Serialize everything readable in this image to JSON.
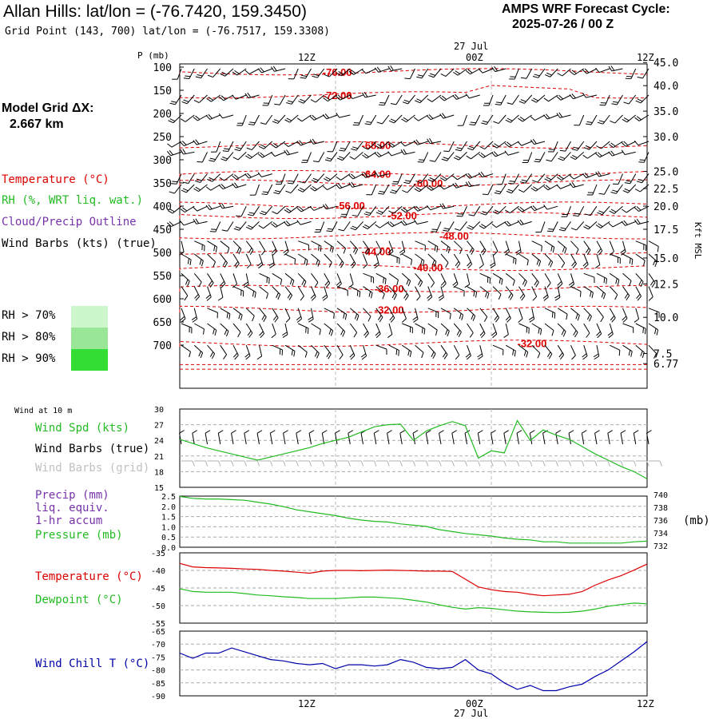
{
  "header": {
    "title": "Allan Hills:  lat/lon = (-76.7420, 159.3450)",
    "subtitle": "Grid Point (143, 700) lat/lon = (-76.7517, 159.3308)",
    "cycle_line1": "AMPS WRF Forecast Cycle:",
    "cycle_line2": "2025-07-26 / 00  Z"
  },
  "model_grid": {
    "line1": "Model Grid ΔX:",
    "line2": "2.667 km"
  },
  "legend": {
    "temperature": "Temperature (°C)",
    "rh": "RH (%, WRT liq. wat.)",
    "cloud": "Cloud/Precip Outline",
    "wind": "Wind Barbs (kts) (true)",
    "rh70": "RH > 70%",
    "rh80": "RH > 80%",
    "rh90": "RH > 90%"
  },
  "colors": {
    "temperature": "#dd0000",
    "rh": "#22bb22",
    "cloud": "#7733aa",
    "rh70": "#ccf7cc",
    "rh80": "#99e699",
    "rh90": "#33dd33",
    "wind_chill": "#0000aa",
    "grid_barbs": "#b0b0b0"
  },
  "time_axis": {
    "date": "27 Jul",
    "top_labels": [
      "12Z",
      "00Z",
      "12Z"
    ],
    "bottom_labels": [
      "12Z",
      "00Z",
      "12Z"
    ]
  },
  "panel_labels": {
    "pressure_axis": "P (mb)",
    "kft_axis": "Kft MSL",
    "wind10": "Wind at 10 m",
    "wind_spd": "Wind Spd (kts)",
    "wind_barbs_true": "Wind Barbs (true)",
    "wind_barbs_grid": "Wind Barbs (grid)",
    "precip1": "Precip (mm)",
    "precip2": "liq. equiv.",
    "precip3": "1-hr accum",
    "pressure": "Pressure (mb)",
    "mb": "(mb)",
    "temperature": "Temperature (°C)",
    "dewpoint": "Dewpoint (°C)",
    "windchill": "Wind Chill T (°C)"
  },
  "chart_data": [
    {
      "type": "line",
      "panel": "cross-section",
      "pressure_levels": [
        "100",
        "150",
        "200",
        "250",
        "300",
        "350",
        "400",
        "450",
        "500",
        "550",
        "600",
        "650",
        "700"
      ],
      "height_labels_kft": [
        "45.0",
        "40.0",
        "35.0",
        "30.0",
        "25.0",
        "22.5",
        "20.0",
        "17.5",
        "15.0",
        "12.5",
        "10.0",
        "7.5",
        "6.77"
      ],
      "height_pressure": [
        90,
        140,
        195,
        250,
        325,
        362,
        400,
        450,
        512,
        568,
        640,
        718,
        740
      ],
      "xlim_hours": [
        0,
        36
      ],
      "temperature_contours": [
        {
          "label": "-76.00",
          "p": 110,
          "at_h": 11
        },
        {
          "label": "-72.00",
          "p": 160,
          "at_h": 11
        },
        {
          "label": "-68.00",
          "p": 268,
          "at_h": 14
        },
        {
          "label": "-64.00",
          "p": 330,
          "at_h": 14
        },
        {
          "label": "-60.00",
          "p": 350,
          "at_h": 18
        },
        {
          "label": "-56.00",
          "p": 398,
          "at_h": 12
        },
        {
          "label": "-52.00",
          "p": 420,
          "at_h": 16
        },
        {
          "label": "-48.00",
          "p": 464,
          "at_h": 20
        },
        {
          "label": "-44.00",
          "p": 497,
          "at_h": 14
        },
        {
          "label": "-40.00",
          "p": 532,
          "at_h": 18
        },
        {
          "label": "-36.00",
          "p": 578,
          "at_h": 15
        },
        {
          "label": "-32.00",
          "p": 623,
          "at_h": 15
        },
        {
          "label": "-32.00",
          "p": 696,
          "at_h": 26
        }
      ]
    },
    {
      "type": "line",
      "panel": "wind-10m",
      "ylim": [
        15,
        30
      ],
      "yticks": [
        "30",
        "27",
        "24",
        "21",
        "18",
        "15"
      ],
      "series": [
        {
          "values": [
            24.2,
            23.4,
            22.6,
            22.0,
            21.4,
            20.8,
            20.2,
            20.8,
            21.4,
            22.0,
            22.6,
            23.4,
            24.0,
            24.6,
            25.6,
            26.6,
            27.0,
            27.1,
            24.0,
            25.8,
            26.8,
            27.6,
            26.8,
            20.6,
            22.0,
            21.6,
            27.8,
            24.0,
            26.0,
            25.0,
            24.2,
            22.8,
            21.4,
            20.2,
            19.0,
            18.0,
            16.6
          ]
        }
      ]
    },
    {
      "type": "line",
      "panel": "precip-pressure",
      "ylim_left": [
        0,
        2.5
      ],
      "yticks_left": [
        "2.5",
        "2.0",
        "1.5",
        "1.0",
        "0.5",
        "0.0"
      ],
      "ylim_right": [
        732,
        740
      ],
      "yticks_right": [
        "740",
        "738",
        "736",
        "734",
        "732"
      ],
      "series": [
        {
          "values": [
            739.7,
            739.4,
            739.3,
            739.3,
            739.2,
            739.1,
            738.8,
            738.5,
            738.1,
            737.6,
            737.3,
            737.0,
            736.7,
            736.3,
            736.0,
            735.8,
            735.7,
            735.4,
            735.2,
            735.0,
            734.5,
            734.2,
            733.9,
            733.7,
            733.5,
            733.2,
            733.0,
            732.9,
            732.6,
            732.6,
            732.4,
            732.4,
            732.4,
            732.4,
            732.4,
            732.6,
            732.7
          ]
        }
      ]
    },
    {
      "type": "line",
      "panel": "temperature-dewpoint",
      "ylim": [
        -55,
        -35
      ],
      "yticks": [
        "-35",
        "-40",
        "-45",
        "-50",
        "-55"
      ],
      "series": [
        {
          "values": [
            -38.0,
            -39.0,
            -39.2,
            -39.3,
            -39.4,
            -39.6,
            -39.7,
            -40.0,
            -40.2,
            -40.5,
            -40.8,
            -40.2,
            -40.0,
            -40.0,
            -40.1,
            -40.0,
            -39.9,
            -40.0,
            -40.1,
            -40.2,
            -40.2,
            -40.3,
            -42.5,
            -44.7,
            -45.5,
            -46.0,
            -46.2,
            -46.8,
            -47.2,
            -47.0,
            -46.8,
            -46.0,
            -44.2,
            -42.7,
            -41.5,
            -39.9,
            -38.2
          ]
        },
        {
          "values": [
            -45.2,
            -46.0,
            -46.2,
            -46.2,
            -46.2,
            -46.6,
            -47.0,
            -47.2,
            -47.5,
            -47.7,
            -48.0,
            -48.0,
            -48.0,
            -47.8,
            -47.6,
            -47.6,
            -47.8,
            -48.0,
            -48.5,
            -49.0,
            -49.8,
            -50.5,
            -51.0,
            -50.6,
            -50.8,
            -51.2,
            -51.6,
            -51.8,
            -51.9,
            -52.0,
            -51.9,
            -51.6,
            -51.0,
            -50.2,
            -49.7,
            -49.3,
            -49.5
          ]
        }
      ]
    },
    {
      "type": "line",
      "panel": "wind-chill",
      "ylim": [
        -90,
        -65
      ],
      "yticks": [
        "-65",
        "-70",
        "-75",
        "-80",
        "-85",
        "-90"
      ],
      "series": [
        {
          "values": [
            -73.5,
            -75.5,
            -73.5,
            -73.5,
            -71.5,
            -73.0,
            -74.5,
            -76.0,
            -76.5,
            -77.5,
            -78.0,
            -77.5,
            -79.5,
            -78.0,
            -78.0,
            -78.5,
            -78.0,
            -76.0,
            -77.0,
            -79.0,
            -79.5,
            -79.0,
            -76.0,
            -80.0,
            -81.5,
            -85.0,
            -87.5,
            -86.0,
            -88.0,
            -88.0,
            -86.5,
            -85.5,
            -82.5,
            -80.0,
            -76.5,
            -73.0,
            -69.0
          ]
        }
      ]
    }
  ]
}
